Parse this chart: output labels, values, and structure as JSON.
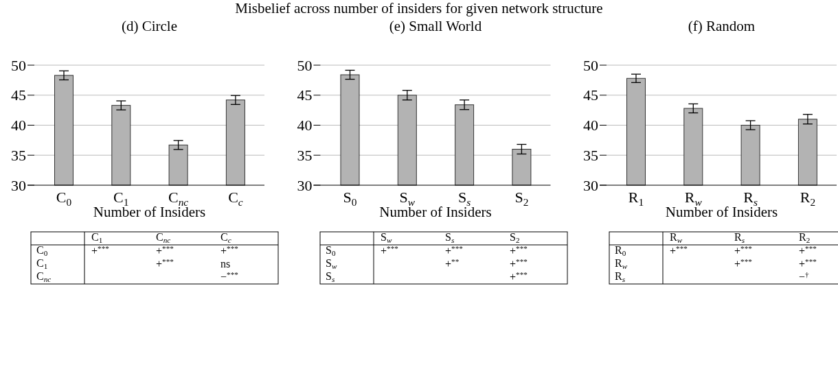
{
  "chart_data": [
    {
      "type": "other",
      "title": "Misbelief across number of insiders for given network structure"
    },
    {
      "type": "bar",
      "subtitle": "(d) Circle",
      "xlabel": "Number of Insiders",
      "categories": [
        "C$_{0}$",
        "C$_{1}$",
        "C$_{nc}$",
        "C$_{c}$"
      ],
      "values": [
        48.3,
        43.3,
        36.7,
        44.2
      ],
      "errors": [
        0.75,
        0.75,
        0.75,
        0.75
      ],
      "color": "#b3b3b3",
      "ylim": [
        30,
        50
      ],
      "yticks": [
        30,
        35,
        40,
        45,
        50
      ],
      "grid": "y"
    },
    {
      "type": "bar",
      "subtitle": "(e) Small World",
      "xlabel": "Number of Insiders",
      "categories": [
        "S$_{0}$",
        "S$_{w}$",
        "S$_{s}$",
        "S$_{2}$"
      ],
      "values": [
        48.4,
        45.0,
        43.4,
        36.0
      ],
      "errors": [
        0.75,
        0.8,
        0.8,
        0.8
      ],
      "color": "#b3b3b3",
      "ylim": [
        30,
        50
      ],
      "yticks": [
        30,
        35,
        40,
        45,
        50
      ],
      "grid": "y"
    },
    {
      "type": "bar",
      "subtitle": "(f) Random",
      "xlabel": "Number of Insiders",
      "categories": [
        "R$_{1}$",
        "R$_{w}$",
        "R$_{s}$",
        "R$_{2}$"
      ],
      "values": [
        47.8,
        42.8,
        40.0,
        41.0
      ],
      "errors": [
        0.7,
        0.75,
        0.75,
        0.8
      ],
      "color": "#b3b3b3",
      "ylim": [
        30,
        50
      ],
      "yticks": [
        30,
        35,
        40,
        45,
        50
      ],
      "grid": "y"
    },
    {
      "type": "other",
      "categories": [
        "C$_{1}$",
        "C$_{nc}$",
        "C$_{c}$"
      ],
      "y_categories": [
        "C$_{0}$",
        "C$_{1}$",
        "C$_{nc}$"
      ],
      "cell_labels": [
        [
          "+$^{***}$",
          "+$^{***}$",
          "+$^{***}$"
        ],
        [
          null,
          "+$^{***}$",
          "ns"
        ],
        [
          null,
          null,
          "−$^{***}$"
        ]
      ]
    },
    {
      "type": "other",
      "categories": [
        "S$_{w}$",
        "S$_{s}$",
        "S$_{2}$"
      ],
      "y_categories": [
        "S$_{0}$",
        "S$_{w}$",
        "S$_{s}$"
      ],
      "cell_labels": [
        [
          "+$^{***}$",
          "+$^{***}$",
          "+$^{***}$"
        ],
        [
          null,
          "+$^{**}$",
          "+$^{***}$"
        ],
        [
          null,
          null,
          "+$^{***}$"
        ]
      ]
    },
    {
      "type": "other",
      "categories": [
        "R$_{w}$",
        "R$_{s}$",
        "R$_{2}$"
      ],
      "y_categories": [
        "R$_{0}$",
        "R$_{w}$",
        "R$_{s}$"
      ],
      "cell_labels": [
        [
          "+$^{***}$",
          "+$^{***}$",
          "+$^{***}$"
        ],
        [
          null,
          "+$^{***}$",
          "+$^{***}$"
        ],
        [
          null,
          null,
          "−$^{†}$"
        ]
      ]
    }
  ]
}
